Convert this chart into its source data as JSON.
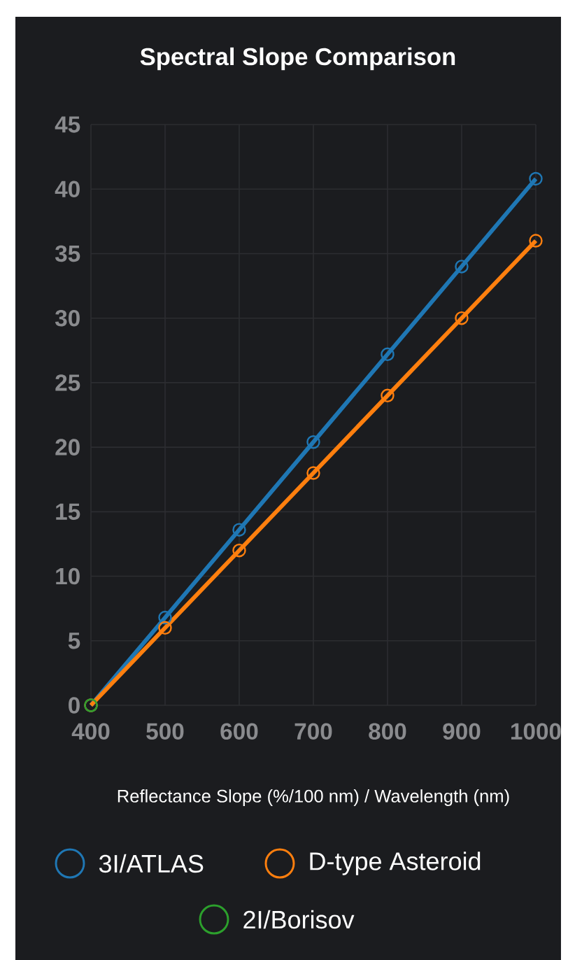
{
  "chart_data": {
    "type": "line",
    "title": "Spectral Slope Comparison",
    "xlabel": "Reflectance Slope (%/100 nm) / Wavelength (nm)",
    "x": [
      400,
      500,
      600,
      700,
      800,
      900,
      1000
    ],
    "series": [
      {
        "name": "3I/ATLAS",
        "color": "#1f77b4",
        "values": [
          0,
          6.8,
          13.6,
          20.4,
          27.2,
          34,
          40.8
        ]
      },
      {
        "name": "D-type Asteroid",
        "color": "#ff7f0e",
        "values": [
          0,
          6,
          12,
          18,
          24,
          30,
          36
        ]
      },
      {
        "name": "2I/Borisov",
        "color": "#2ca02c",
        "values": [
          0,
          null,
          null,
          null,
          null,
          null,
          null
        ]
      }
    ],
    "xlim": [
      400,
      1000
    ],
    "ylim": [
      0,
      45
    ],
    "xticks": [
      400,
      500,
      600,
      700,
      800,
      900,
      1000
    ],
    "yticks": [
      0,
      5,
      10,
      15,
      20,
      25,
      30,
      35,
      40,
      45
    ],
    "grid": true,
    "legend": "bottom",
    "marker": "circle",
    "line_style": "solid"
  }
}
